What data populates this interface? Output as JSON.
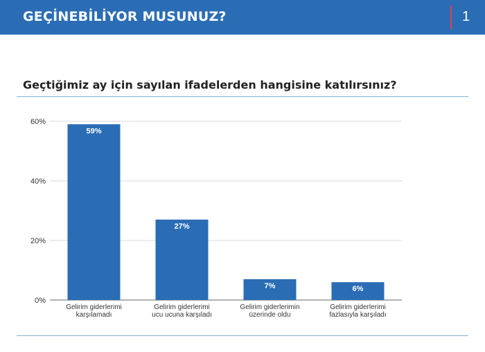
{
  "header": {
    "title": "GEÇİNEBİLİYOR MUSUNUZ?",
    "page_number": "1"
  },
  "question": "Geçtiğimiz ay için sayılan ifadelerden hangisine katılırsınız?",
  "colors": {
    "header_bg": "#2a6db5",
    "bar": "#2a6db5",
    "accent": "#e0404a",
    "rule": "#7fb4d8"
  },
  "chart_data": {
    "type": "bar",
    "categories": [
      [
        "Gelirim giderlerimi",
        "karşılamadı"
      ],
      [
        "Gelirim giderlerimi",
        "ucu ucuna karşıladı"
      ],
      [
        "Gelirim giderlerimin",
        "üzerinde oldu"
      ],
      [
        "Gelirim giderlerimi",
        "fazlasıyla karşıladı"
      ]
    ],
    "values": [
      59,
      27,
      7,
      6
    ],
    "data_labels": [
      "59%",
      "27%",
      "7%",
      "6%"
    ],
    "yticks": [
      0,
      20,
      40,
      60
    ],
    "ytick_labels": [
      "0%",
      "20%",
      "40%",
      "60%"
    ],
    "ylim": [
      0,
      60
    ],
    "grid": true,
    "title": "",
    "xlabel": "",
    "ylabel": ""
  }
}
